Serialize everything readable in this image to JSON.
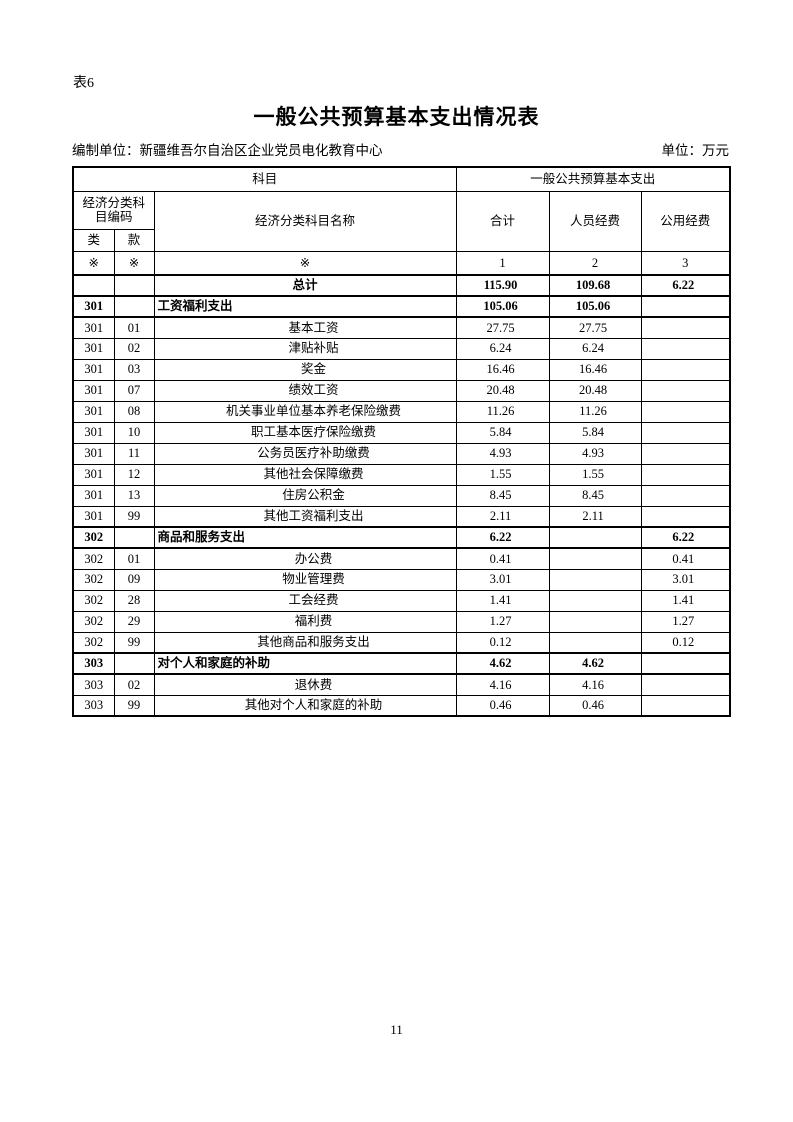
{
  "page": {
    "sheet_label": "表6",
    "title": "一般公共预算基本支出情况表",
    "prepared_by": "编制单位：新疆维吾尔自治区企业党员电化教育中心",
    "unit": "单位：万元",
    "page_number": "11"
  },
  "table": {
    "header": {
      "subject_group": "科目",
      "budget_group": "一般公共预算基本支出",
      "code_group": "经济分类科目编码",
      "col_class": "类",
      "col_section": "款",
      "col_name": "经济分类科目名称",
      "col_total": "合计",
      "col_personnel": "人员经费",
      "col_public": "公用经费",
      "ref_class": "※",
      "ref_section": "※",
      "ref_name": "※",
      "ref_total": "1",
      "ref_personnel": "2",
      "ref_public": "3"
    },
    "rows": [
      {
        "cls": "",
        "sec": "",
        "name": "总计",
        "total": "115.90",
        "personnel": "109.68",
        "public": "",
        "style": "total"
      },
      {
        "cls": "301",
        "sec": "",
        "name": "工资福利支出",
        "total": "105.06",
        "personnel": "105.06",
        "public": "",
        "style": "category"
      },
      {
        "cls": "301",
        "sec": "01",
        "name": "基本工资",
        "total": "27.75",
        "personnel": "27.75",
        "public": "",
        "style": "detail"
      },
      {
        "cls": "301",
        "sec": "02",
        "name": "津贴补贴",
        "total": "6.24",
        "personnel": "6.24",
        "public": "",
        "style": "detail"
      },
      {
        "cls": "301",
        "sec": "03",
        "name": "奖金",
        "total": "16.46",
        "personnel": "16.46",
        "public": "",
        "style": "detail"
      },
      {
        "cls": "301",
        "sec": "07",
        "name": "绩效工资",
        "total": "20.48",
        "personnel": "20.48",
        "public": "",
        "style": "detail"
      },
      {
        "cls": "301",
        "sec": "08",
        "name": "机关事业单位基本养老保险缴费",
        "total": "11.26",
        "personnel": "11.26",
        "public": "",
        "style": "detail"
      },
      {
        "cls": "301",
        "sec": "10",
        "name": "职工基本医疗保险缴费",
        "total": "5.84",
        "personnel": "5.84",
        "public": "",
        "style": "detail"
      },
      {
        "cls": "301",
        "sec": "11",
        "name": "公务员医疗补助缴费",
        "total": "4.93",
        "personnel": "4.93",
        "public": "",
        "style": "detail"
      },
      {
        "cls": "301",
        "sec": "12",
        "name": "其他社会保障缴费",
        "total": "1.55",
        "personnel": "1.55",
        "public": "",
        "style": "detail"
      },
      {
        "cls": "301",
        "sec": "13",
        "name": "住房公积金",
        "total": "8.45",
        "personnel": "8.45",
        "public": "",
        "style": "detail"
      },
      {
        "cls": "301",
        "sec": "99",
        "name": "其他工资福利支出",
        "total": "2.11",
        "personnel": "2.11",
        "public": "",
        "style": "detail"
      },
      {
        "cls": "302",
        "sec": "",
        "name": "商品和服务支出",
        "total": "6.22",
        "personnel": "",
        "public": "6.22",
        "style": "category"
      },
      {
        "cls": "302",
        "sec": "01",
        "name": "办公费",
        "total": "0.41",
        "personnel": "",
        "public": "0.41",
        "style": "detail"
      },
      {
        "cls": "302",
        "sec": "09",
        "name": "物业管理费",
        "total": "3.01",
        "personnel": "",
        "public": "3.01",
        "style": "detail"
      },
      {
        "cls": "302",
        "sec": "28",
        "name": "工会经费",
        "total": "1.41",
        "personnel": "",
        "public": "1.41",
        "style": "detail"
      },
      {
        "cls": "302",
        "sec": "29",
        "name": "福利费",
        "total": "1.27",
        "personnel": "",
        "public": "1.27",
        "style": "detail"
      },
      {
        "cls": "302",
        "sec": "99",
        "name": "其他商品和服务支出",
        "total": "0.12",
        "personnel": "",
        "public": "0.12",
        "style": "detail"
      },
      {
        "cls": "303",
        "sec": "",
        "name": "对个人和家庭的补助",
        "total": "4.62",
        "personnel": "4.62",
        "public": "",
        "style": "category"
      },
      {
        "cls": "303",
        "sec": "02",
        "name": "退休费",
        "total": "4.16",
        "personnel": "4.16",
        "public": "",
        "style": "detail"
      },
      {
        "cls": "303",
        "sec": "99",
        "name": "其他对个人和家庭的补助",
        "total": "0.46",
        "personnel": "0.46",
        "public": "",
        "style": "detail"
      }
    ],
    "total_row_public": "6.22"
  }
}
